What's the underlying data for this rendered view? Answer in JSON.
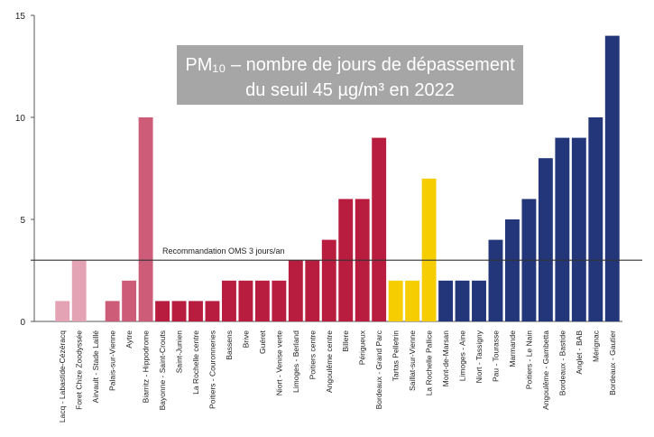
{
  "chart_data": {
    "type": "bar",
    "title": [
      "PM₁₀ – nombre de jours de dépassement",
      "du seuil 45 µg/m³ en 2022"
    ],
    "categories": [
      "Lacq - Labastide-Cézéracq",
      "Foret Chize Zoodyssée",
      "Airvault - Stade Laillé",
      "Palais-sur-Vienne",
      "Aytre",
      "Biarritz - Hippodrome",
      "Bayonne - Saint-Crouts",
      "Saint-Junien",
      "La Rochelle centre",
      "Poitiers - Couronneries",
      "Bassens",
      "Brive",
      "Guéret",
      "Niort - Venise verte",
      "Limoges - Berland",
      "Poitiers centre",
      "Angoulême centre",
      "Billere",
      "Périgueux",
      "Bordeaux - Grand Parc",
      "Tartas Pelletrin",
      "Saillat-sur-Vienne",
      "La Rochelle Pallice",
      "Mont-de-Marsan",
      "Limoges - Aine",
      "Niort - Tassigny",
      "Pau - Tourasse",
      "Marmande",
      "Poitiers - Le Nain",
      "Angoulême - Gambetta",
      "Bordeaux - Bastide",
      "Anglet - BAB",
      "Mérignac",
      "Bordeaux - Gautier"
    ],
    "values": [
      1,
      3,
      0,
      1,
      2,
      10,
      1,
      1,
      1,
      1,
      2,
      2,
      2,
      2,
      3,
      3,
      4,
      6,
      6,
      9,
      2,
      2,
      7,
      2,
      2,
      2,
      4,
      5,
      6,
      8,
      9,
      9,
      10,
      14
    ],
    "colors": [
      "#e4a3b5",
      "#e4a3b5",
      "#e4a3b5",
      "#cc5c78",
      "#cc5c78",
      "#cc5c78",
      "#b81c3e",
      "#b81c3e",
      "#b81c3e",
      "#b81c3e",
      "#b81c3e",
      "#b81c3e",
      "#b81c3e",
      "#b81c3e",
      "#b81c3e",
      "#b81c3e",
      "#b81c3e",
      "#b81c3e",
      "#b81c3e",
      "#b81c3e",
      "#f5cd00",
      "#f5cd00",
      "#f5cd00",
      "#223679",
      "#223679",
      "#223679",
      "#223679",
      "#223679",
      "#223679",
      "#223679",
      "#223679",
      "#223679",
      "#223679",
      "#223679"
    ],
    "ylim": [
      0,
      15
    ],
    "yticks": [
      0,
      5,
      10,
      15
    ],
    "reference_line": {
      "value": 3,
      "label": "Recommandation OMS 3 jours/an"
    }
  }
}
